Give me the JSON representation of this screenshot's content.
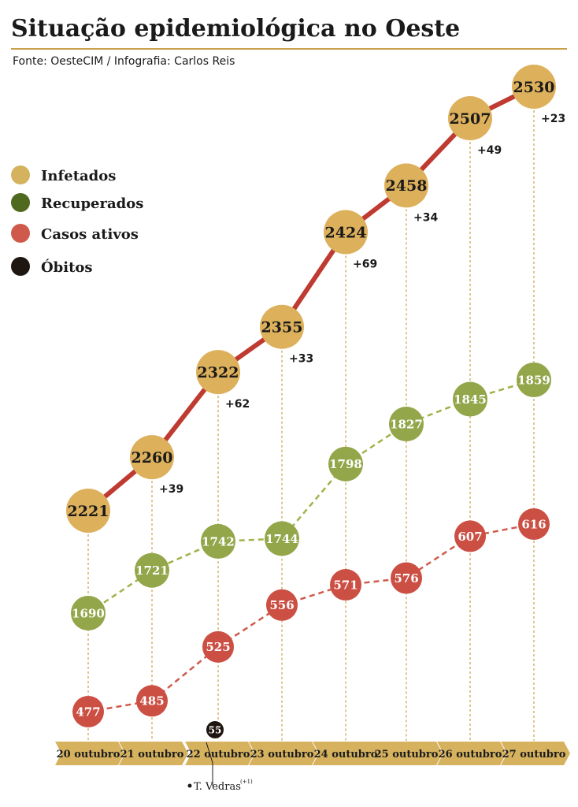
{
  "header": {
    "title": "Situação epidemiológica no Oeste",
    "source": "Fonte: OesteCIM / Infografia: Carlos Reis"
  },
  "legend": [
    {
      "label": "Infetados",
      "color": "#d4b25e"
    },
    {
      "label": "Recuperados",
      "color": "#4f6a1f"
    },
    {
      "label": "Casos ativos",
      "color": "#cf5a4c"
    },
    {
      "label": "Óbitos",
      "color": "#1e1610"
    }
  ],
  "colors": {
    "accent": "#c9a04a",
    "infected_fill": "#ddb05b",
    "infected_line": "#bf3a30",
    "recovered_fill": "#93a64a",
    "recovered_line": "#9fb34a",
    "active_fill": "#cc4f44",
    "active_line": "#cf5a4c",
    "deaths_fill": "#1e1610",
    "date_band": "#d6b25e"
  },
  "chart_data": {
    "type": "line",
    "title": "Situação epidemiológica no Oeste",
    "categories": [
      "20 outubro",
      "21 outubro",
      "22 outubro",
      "23 outubro",
      "24 outubro",
      "25 outubro",
      "26 outubro",
      "27 outubro"
    ],
    "series": [
      {
        "name": "Infetados",
        "values": [
          2221,
          2260,
          2322,
          2355,
          2424,
          2458,
          2507,
          2530
        ],
        "daily_increase": [
          "",
          "+39",
          "+62",
          "+33",
          "+69",
          "+34",
          "+49",
          "+23"
        ]
      },
      {
        "name": "Recuperados",
        "values": [
          1690,
          1721,
          1742,
          1744,
          1798,
          1827,
          1845,
          1859
        ]
      },
      {
        "name": "Casos ativos",
        "values": [
          477,
          485,
          525,
          556,
          571,
          576,
          607,
          616
        ]
      },
      {
        "name": "Óbitos",
        "values": [
          null,
          null,
          55,
          null,
          null,
          null,
          null,
          null
        ]
      }
    ],
    "annotations": [
      {
        "category": "22 outubro",
        "text": "T. Vedras",
        "superscript": "(+1)"
      }
    ]
  }
}
